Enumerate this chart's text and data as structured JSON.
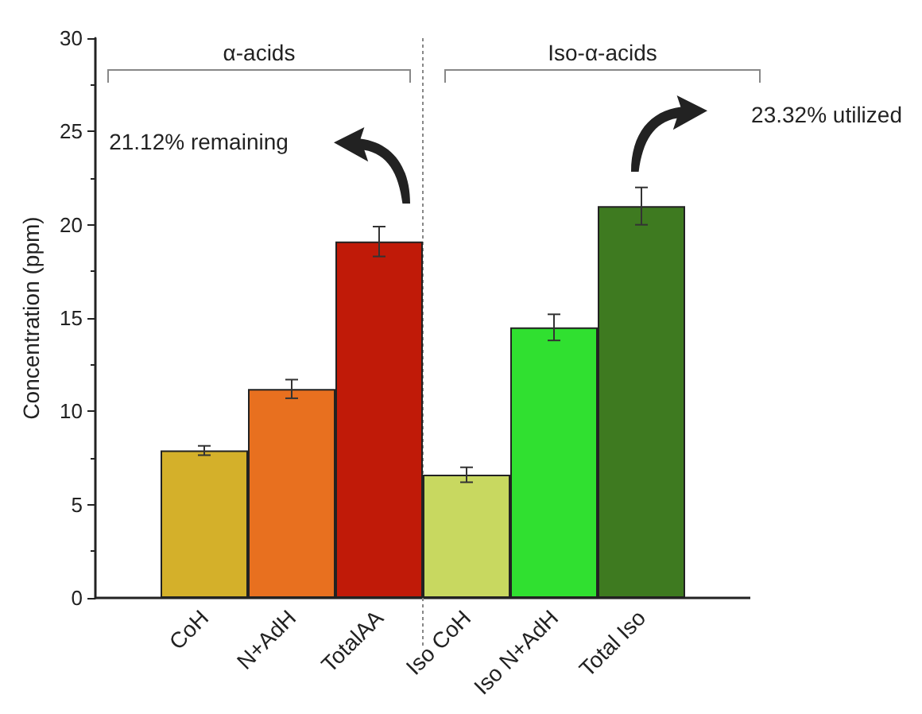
{
  "chart_data": {
    "type": "bar",
    "ylabel": "Concentration (ppm)",
    "categories": [
      "CoH",
      "N+AdH",
      "TotalAA",
      "Iso CoH",
      "Iso N+AdH",
      "Total Iso"
    ],
    "values": [
      7.9,
      11.2,
      19.1,
      6.6,
      14.5,
      21.0
    ],
    "errors": [
      0.25,
      0.5,
      0.8,
      0.4,
      0.7,
      1.0
    ],
    "colors": [
      "#d4b02a",
      "#e8701f",
      "#c01a08",
      "#c8d860",
      "#30e030",
      "#3e7a20"
    ],
    "ylim": [
      0,
      30
    ],
    "yticks": [
      0,
      5,
      10,
      15,
      20,
      25,
      30
    ],
    "grid": false,
    "annotations": [
      "α-acids",
      "Iso-α-acids",
      "21.12% remaining",
      "23.32% utilized"
    ]
  }
}
